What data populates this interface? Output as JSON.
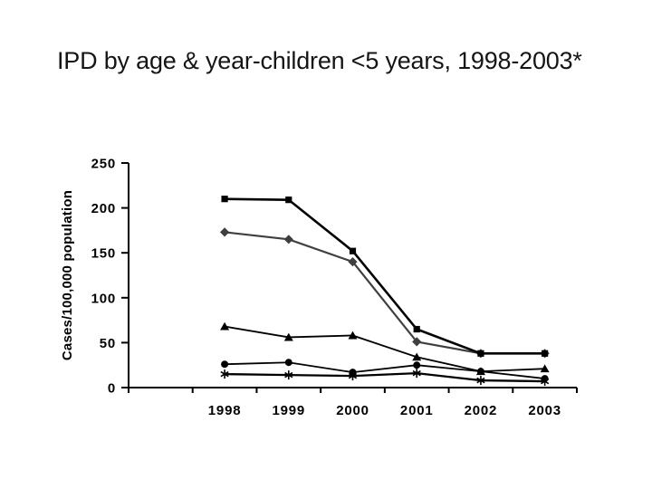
{
  "slide": {
    "title": "IPD by age & year-children <5 years, 1998-2003*"
  },
  "chart_data": {
    "type": "line",
    "title": "",
    "x": [
      "1998",
      "1999",
      "2000",
      "2001",
      "2002",
      "2003"
    ],
    "xlabel": "",
    "ylabel": "Cases/100,000 population",
    "ylim": [
      0,
      250
    ],
    "yticks": [
      0,
      50,
      100,
      150,
      200,
      250
    ],
    "grid": false,
    "legend": "none",
    "axis_color": "#000000",
    "series": [
      {
        "name": "squares",
        "marker": "square",
        "color": "#000000",
        "values": [
          210,
          209,
          152,
          65,
          38,
          38
        ]
      },
      {
        "name": "diamonds",
        "marker": "diamond",
        "color": "#3f3f3f",
        "values": [
          173,
          165,
          140,
          51,
          38,
          38
        ]
      },
      {
        "name": "triangles",
        "marker": "triangle",
        "color": "#000000",
        "values": [
          68,
          56,
          58,
          34,
          18,
          21
        ]
      },
      {
        "name": "circles",
        "marker": "circle",
        "color": "#000000",
        "values": [
          26,
          28,
          17,
          25,
          18,
          10
        ]
      },
      {
        "name": "stars",
        "marker": "star",
        "color": "#000000",
        "values": [
          15,
          14,
          13,
          16,
          8,
          7
        ]
      }
    ]
  }
}
